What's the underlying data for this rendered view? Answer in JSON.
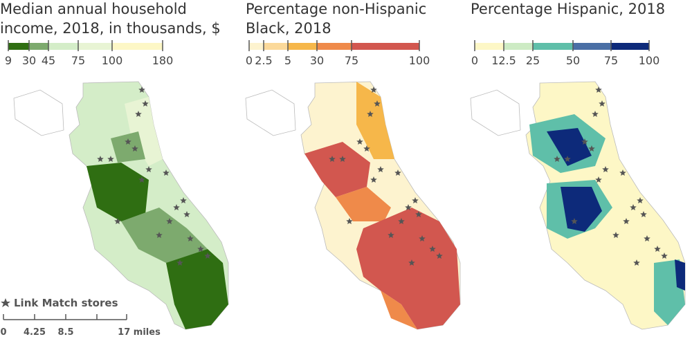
{
  "maps": [
    {
      "title_lines": [
        "Median annual household",
        "income, 2018, in thousands, $"
      ],
      "legend": {
        "breaks": [
          9,
          30,
          45,
          75,
          100,
          180
        ],
        "colors": [
          "#2f6e12",
          "#7daa6e",
          "#d4edc8",
          "#e8f4d4",
          "#fdf7c6"
        ]
      }
    },
    {
      "title_lines": [
        "Percentage non-Hispanic",
        "Black, 2018"
      ],
      "legend": {
        "breaks": [
          0,
          2.5,
          5,
          30,
          75,
          100
        ],
        "colors": [
          "#fdf3cf",
          "#fbd99a",
          "#f6b74a",
          "#ef8a4a",
          "#d2574f"
        ]
      }
    },
    {
      "title_lines": [
        "Percentage Hispanic, 2018"
      ],
      "legend": {
        "breaks": [
          0,
          12.5,
          25,
          50,
          75,
          100
        ],
        "colors": [
          "#fdf7c6",
          "#cdebc4",
          "#5fbfa9",
          "#4a6fa5",
          "#0d2a7a"
        ]
      }
    }
  ],
  "legend_note": "Link Match stores",
  "scale_bar": {
    "labels": [
      0,
      4.25,
      8.5,
      "17 miles"
    ]
  }
}
